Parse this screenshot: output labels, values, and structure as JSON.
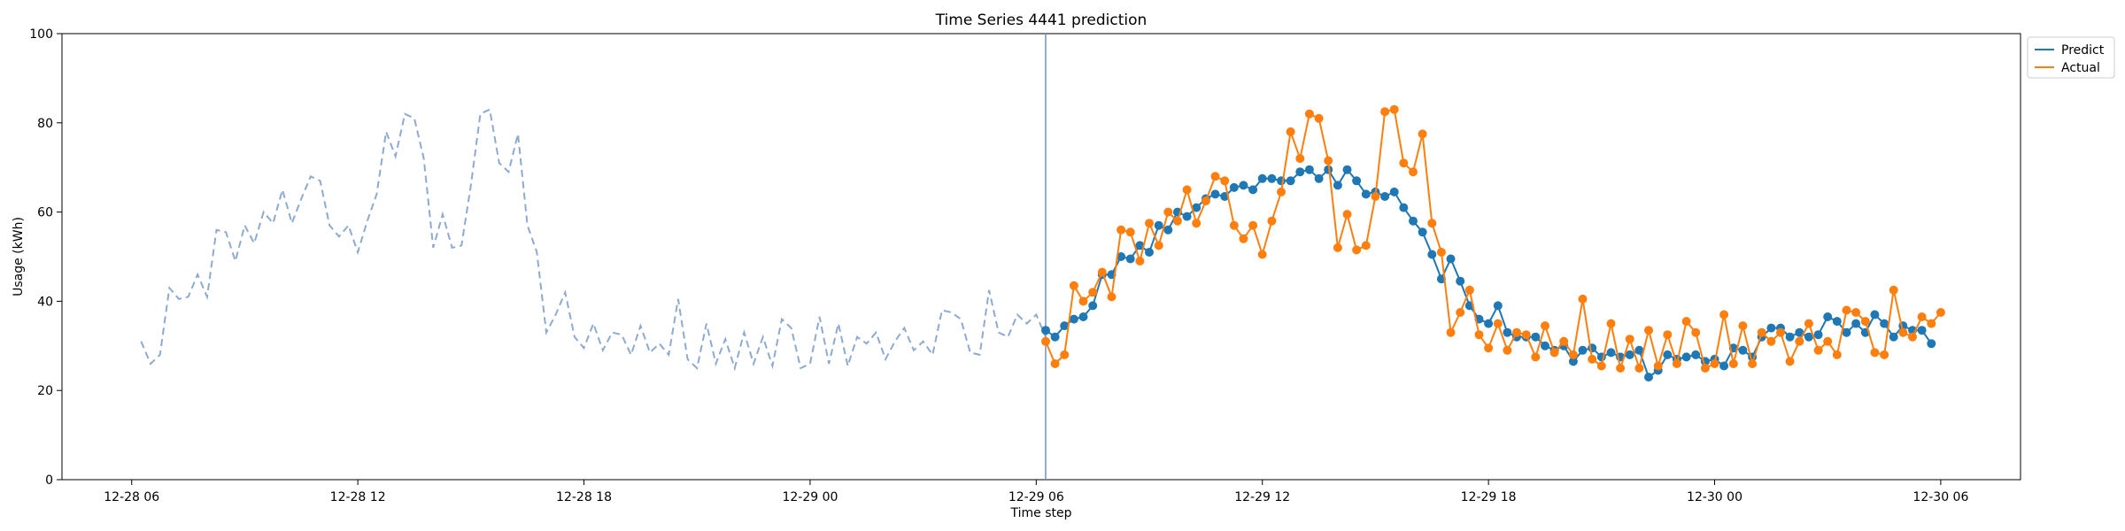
{
  "chart_data": {
    "type": "line",
    "title": "Time Series 4441 prediction",
    "xlabel": "Time step",
    "ylabel": "Usage (kWh)",
    "ylim": [
      0,
      100
    ],
    "yticks": [
      0,
      20,
      40,
      60,
      80,
      100
    ],
    "xlim": [
      "12-28 04:09",
      "12-30 08:07"
    ],
    "xticks": [
      {
        "t": "12-28 06:00",
        "label": "12-28 06"
      },
      {
        "t": "12-28 12:00",
        "label": "12-28 12"
      },
      {
        "t": "12-28 18:00",
        "label": "12-28 18"
      },
      {
        "t": "12-29 00:00",
        "label": "12-29 00"
      },
      {
        "t": "12-29 06:00",
        "label": "12-29 06"
      },
      {
        "t": "12-29 12:00",
        "label": "12-29 12"
      },
      {
        "t": "12-29 18:00",
        "label": "12-29 18"
      },
      {
        "t": "12-30 00:00",
        "label": "12-30 00"
      },
      {
        "t": "12-30 06:00",
        "label": "12-30 06"
      }
    ],
    "grid": false,
    "legend_position": "outside-top-right",
    "forecast_start": "12-29 06:15",
    "sample_interval_minutes": 15,
    "history": {
      "start": "12-28 06:15",
      "style": "dashed",
      "color": "#8eaad0",
      "values": [
        31,
        26,
        28,
        43,
        40.5,
        41,
        46,
        41,
        56,
        55.5,
        49,
        57,
        53,
        60,
        57.5,
        65,
        57.5,
        63,
        68,
        67,
        57,
        54.5,
        57,
        51,
        58,
        64,
        78,
        72.5,
        82,
        81,
        72,
        52,
        59.5,
        52,
        52.5,
        66,
        82,
        83,
        71,
        69,
        77.5,
        57,
        51,
        33,
        37,
        42,
        32,
        29.5,
        35,
        29,
        33,
        32.5,
        28,
        34.5,
        28.5,
        30.5,
        28,
        40.5,
        27,
        25,
        35,
        26,
        31.5,
        25,
        33,
        26,
        32,
        25.5,
        36,
        34,
        25,
        26,
        36.5,
        26,
        35,
        25.5,
        32,
        30.5,
        33,
        27,
        31,
        34,
        29,
        31,
        28,
        38,
        37.5,
        36,
        28.5,
        28,
        42.5,
        33,
        32,
        37,
        35,
        37,
        32
      ]
    },
    "series": [
      {
        "name": "Predict",
        "color": "#1f77b4",
        "start": "12-29 06:15",
        "values": [
          33.5,
          32,
          34.5,
          36,
          36.5,
          39,
          46,
          46,
          50,
          49.5,
          52.5,
          51,
          57,
          56,
          60,
          59,
          61,
          63,
          64,
          63.5,
          65.5,
          66,
          65,
          67.5,
          67.5,
          67,
          67,
          69,
          69.5,
          67.5,
          69.5,
          66,
          69.5,
          67,
          64,
          64.5,
          63.5,
          64.5,
          61,
          58,
          55.5,
          50.5,
          45,
          49.5,
          44.5,
          39,
          36,
          35,
          39,
          33,
          32,
          32,
          32,
          30,
          29,
          30,
          26.5,
          29,
          29.5,
          27.5,
          28.5,
          27.5,
          28,
          29,
          23,
          24.5,
          28,
          27,
          27.5,
          28,
          26.5,
          27,
          25.5,
          29.5,
          29,
          27.5,
          32,
          34,
          34,
          32,
          33,
          32,
          32.5,
          36.5,
          35.5,
          33,
          35,
          33,
          37,
          35,
          32,
          34.5,
          33.5,
          33.5,
          30.5
        ]
      },
      {
        "name": "Actual",
        "color": "#ff7f0e",
        "start": "12-29 06:15",
        "values": [
          31,
          26,
          28,
          43.5,
          40,
          42,
          46.5,
          41,
          56,
          55.5,
          49,
          57.5,
          52.5,
          60,
          58,
          65,
          57.5,
          62.5,
          68,
          67,
          57,
          54,
          57,
          50.5,
          58,
          64.5,
          78,
          72,
          82,
          81,
          71.5,
          52,
          59.5,
          51.5,
          52.5,
          63.5,
          82.5,
          83,
          71,
          69,
          77.5,
          57.5,
          51,
          33,
          37.5,
          42.5,
          32.5,
          29.5,
          35,
          29,
          33,
          32.5,
          27.5,
          34.5,
          28.5,
          31,
          28,
          40.5,
          27,
          25.5,
          35,
          25,
          31.5,
          25,
          33.5,
          25.5,
          32.5,
          26,
          35.5,
          33,
          25,
          26,
          37,
          26,
          34.5,
          26,
          33,
          31,
          33,
          26.5,
          31,
          35,
          29,
          31,
          28,
          38,
          37.5,
          35.5,
          28.5,
          28,
          42.5,
          33,
          32,
          36.5,
          35,
          37.5
        ]
      }
    ]
  }
}
